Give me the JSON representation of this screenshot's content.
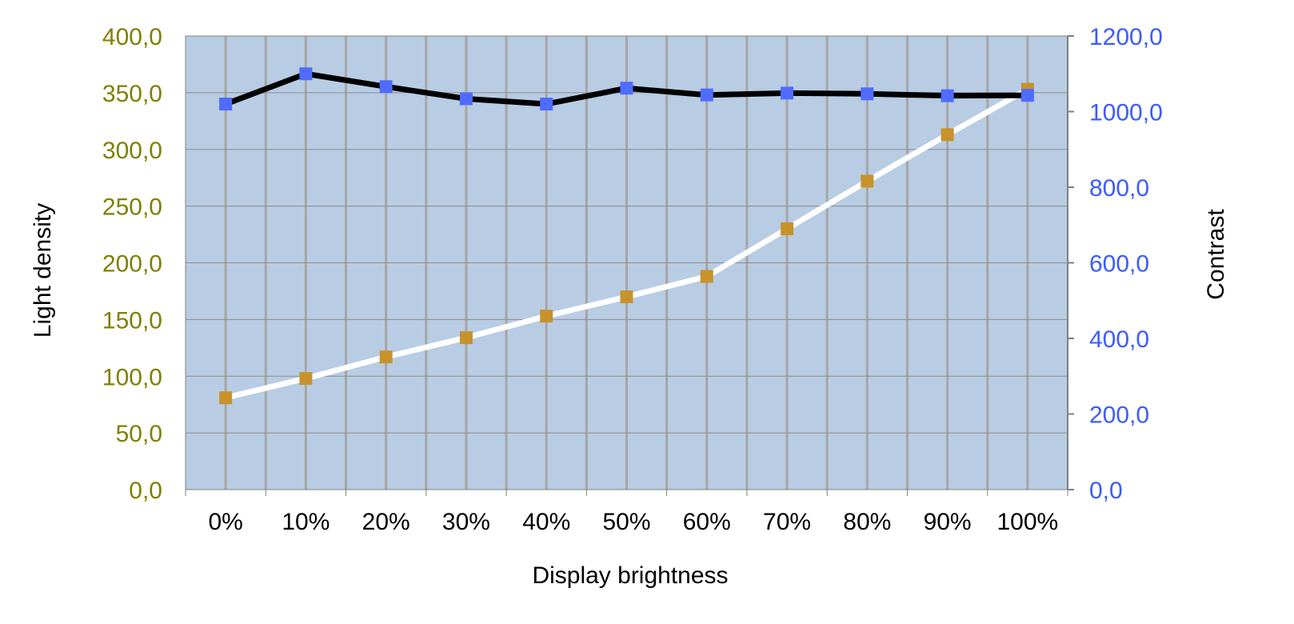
{
  "chart_data": {
    "type": "line",
    "xlabel": "Display brightness",
    "ylabel_left": "Light density",
    "ylabel_right": "Contrast",
    "categories": [
      "0%",
      "10%",
      "20%",
      "30%",
      "40%",
      "50%",
      "60%",
      "70%",
      "80%",
      "90%",
      "100%"
    ],
    "y_left": {
      "range": [
        0,
        400
      ],
      "ticks": [
        "0,0",
        "50,0",
        "100,0",
        "150,0",
        "200,0",
        "250,0",
        "300,0",
        "350,0",
        "400,0"
      ],
      "tick_values": [
        0,
        50,
        100,
        150,
        200,
        250,
        300,
        350,
        400
      ],
      "color": "#808000"
    },
    "y_right": {
      "range": [
        0,
        1200
      ],
      "ticks": [
        "0,0",
        "200,0",
        "400,0",
        "600,0",
        "800,0",
        "1000,0",
        "1200,0"
      ],
      "tick_values": [
        0,
        200,
        400,
        600,
        800,
        1000,
        1200
      ],
      "color": "#3b5bff"
    },
    "series": [
      {
        "axis": "left",
        "line_color": "#ffffff",
        "marker_color": "#c8922a",
        "values": [
          81,
          98,
          117,
          134,
          153,
          170,
          188,
          230,
          272,
          313,
          353
        ]
      },
      {
        "axis": "right",
        "line_color": "#000000",
        "marker_color": "#4f6cff",
        "values": [
          1020,
          1100,
          1066,
          1034,
          1020,
          1062,
          1044,
          1049,
          1047,
          1042,
          1043
        ]
      }
    ],
    "plot_background": "#b8cce4",
    "grid": true,
    "legend": "none"
  }
}
